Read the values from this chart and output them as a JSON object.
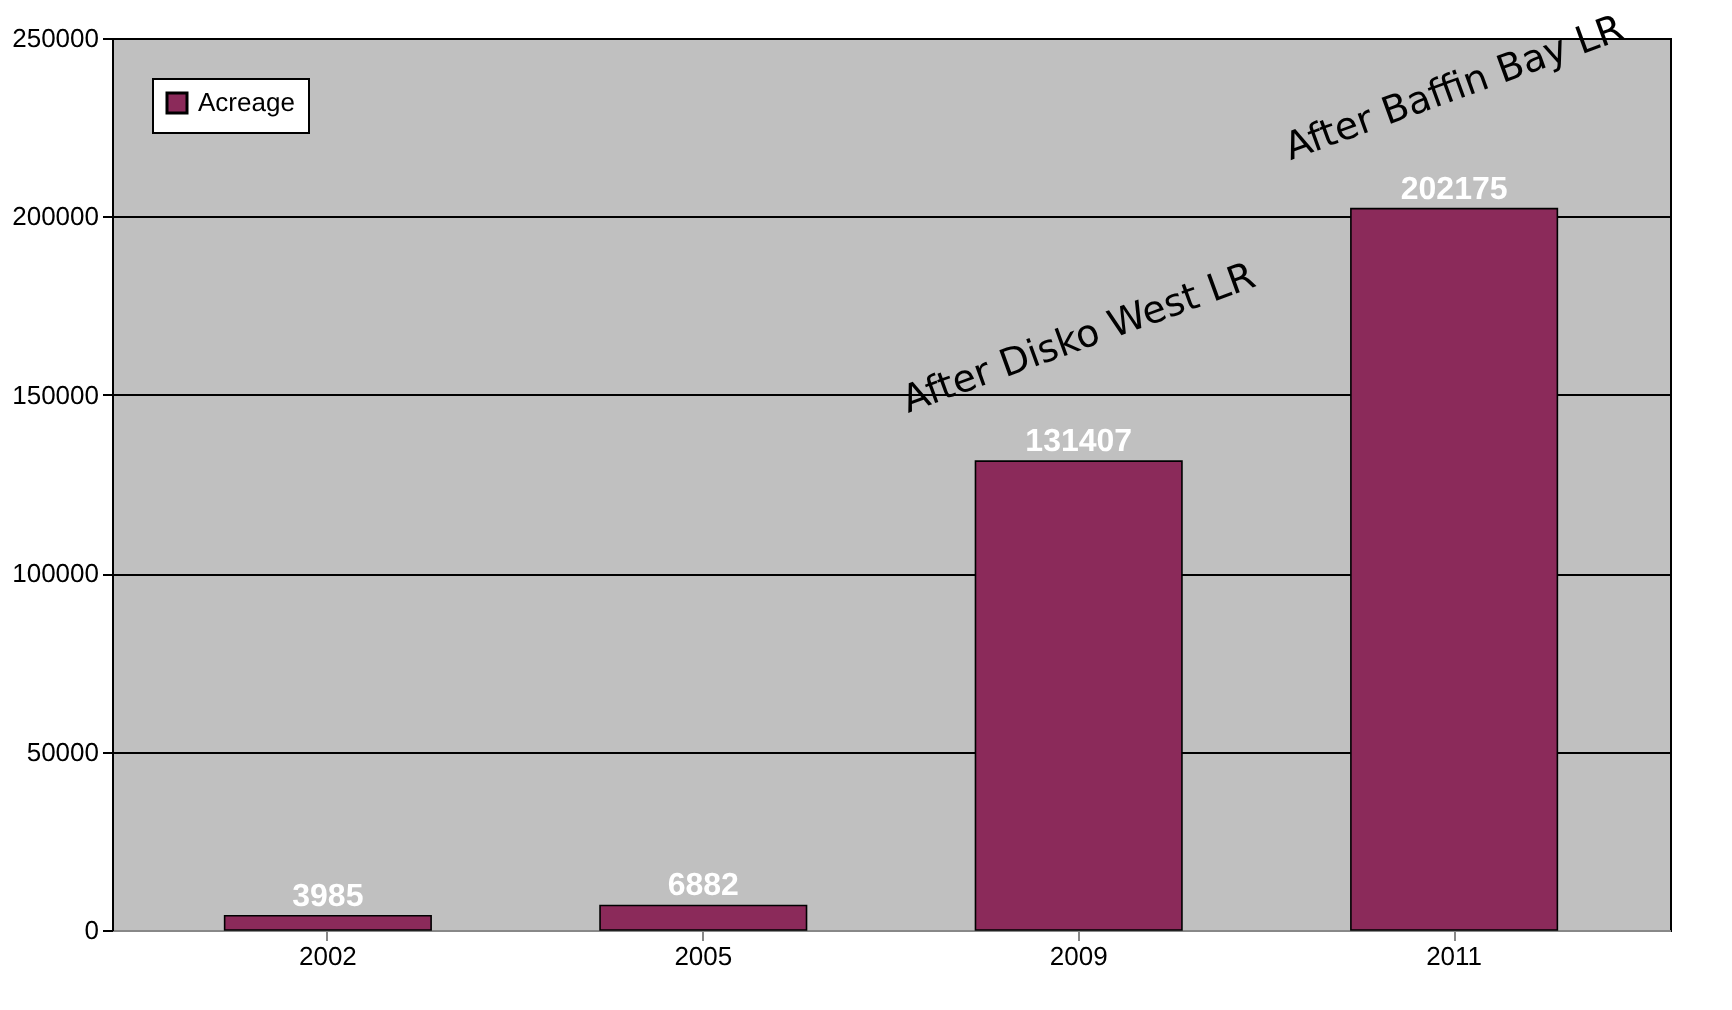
{
  "chart_data": {
    "type": "bar",
    "categories": [
      "2002",
      "2005",
      "2009",
      "2011"
    ],
    "series": [
      {
        "name": "Acreage",
        "color": "#8b2a5a",
        "values": [
          3985,
          6882,
          131407,
          202175
        ]
      }
    ],
    "ylim": [
      0,
      250000
    ],
    "yticks": [
      0,
      50000,
      100000,
      150000,
      200000,
      250000
    ],
    "grid": "y",
    "legend": "top left",
    "data_labels": true,
    "annotations": [
      "After Disko West LR",
      "After Baffin Bay LR"
    ]
  }
}
